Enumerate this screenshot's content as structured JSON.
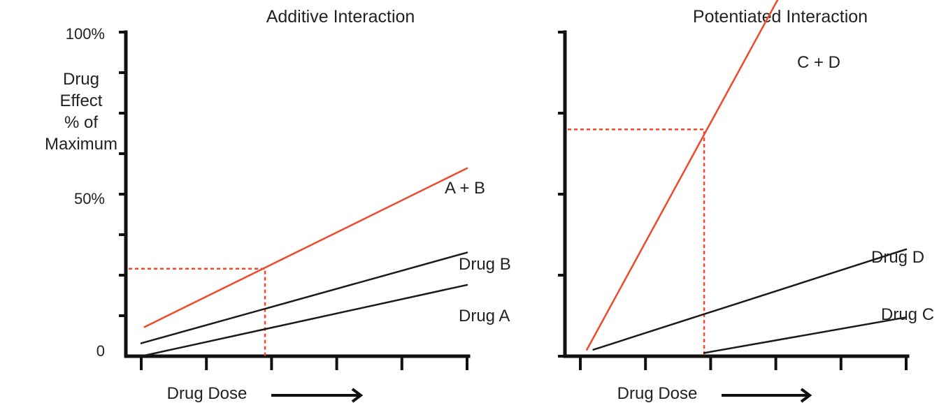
{
  "colors": {
    "combination": "#f0482b",
    "single_drug": "#1a1a1a",
    "axis": "#111111",
    "guide": "#f0482b"
  },
  "chart_data": [
    {
      "type": "line",
      "title": "Additive Interaction",
      "ylabel_lines": [
        "Drug",
        "Effect",
        "% of",
        "Maximum"
      ],
      "xlabel": "Drug Dose",
      "x_arrow": true,
      "x_tick_count": 6,
      "y_tick_labels": [
        {
          "value": 0,
          "label": "0"
        },
        {
          "value": 50,
          "label": "50%"
        },
        {
          "value": 100,
          "label": "100%"
        }
      ],
      "y_minor_ticks": [
        25,
        50,
        75,
        100
      ],
      "ylim": [
        0,
        100
      ],
      "xlim": [
        0,
        5
      ],
      "series": [
        {
          "name": "A + B",
          "combined": true,
          "x": [
            0.05,
            5.0
          ],
          "y": [
            9,
            58
          ]
        },
        {
          "name": "Drug B",
          "combined": false,
          "x": [
            0.0,
            5.0
          ],
          "y": [
            4,
            32
          ]
        },
        {
          "name": "Drug A",
          "combined": false,
          "x": [
            0.0,
            5.0
          ],
          "y": [
            0,
            22
          ]
        }
      ],
      "guide": {
        "x": 1.9,
        "y": 27
      }
    },
    {
      "type": "line",
      "title": "Potentiated Interaction",
      "xlabel": "Drug Dose",
      "x_arrow": true,
      "x_tick_count": 6,
      "y_minor_ticks": [
        0,
        25,
        50,
        75,
        100
      ],
      "ylim": [
        0,
        100
      ],
      "xlim": [
        0,
        5
      ],
      "series": [
        {
          "name": "C + D",
          "combined": true,
          "x": [
            0.1,
            3.3
          ],
          "y": [
            2,
            120
          ]
        },
        {
          "name": "Drug D",
          "combined": false,
          "x": [
            0.2,
            5.0
          ],
          "y": [
            2,
            33
          ]
        },
        {
          "name": "Drug C",
          "combined": false,
          "x": [
            1.9,
            5.0
          ],
          "y": [
            1,
            12
          ]
        }
      ],
      "guide": {
        "x": 1.9,
        "y": 70
      }
    }
  ]
}
